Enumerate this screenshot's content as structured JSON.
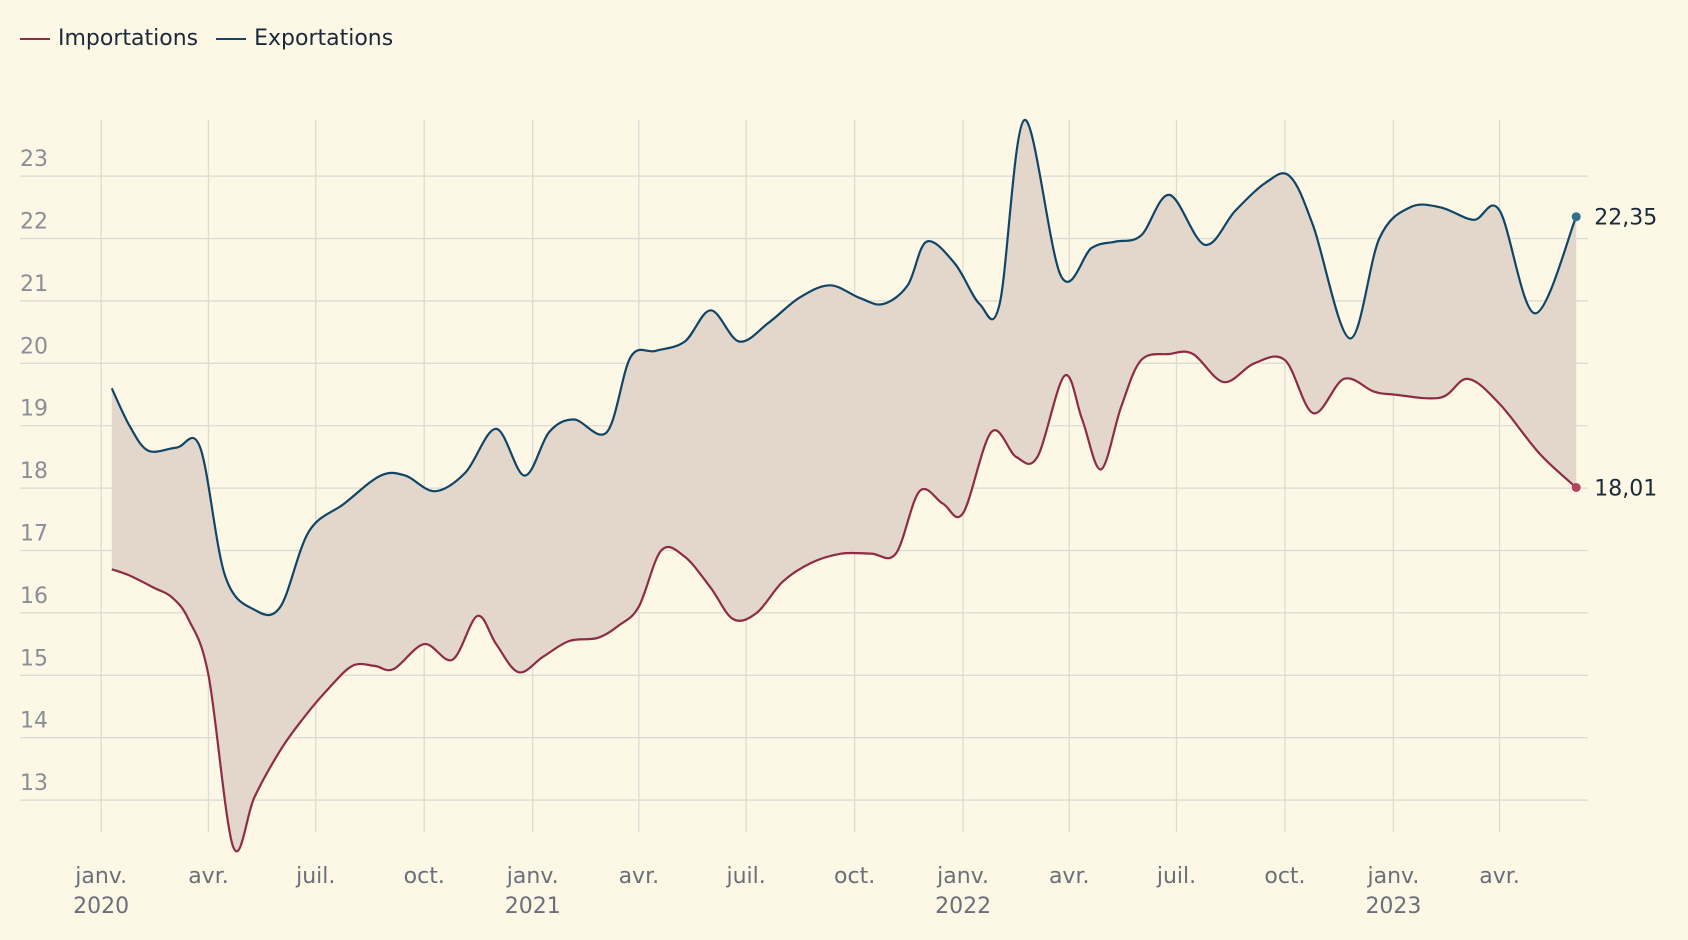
{
  "legend": {
    "items": [
      {
        "label": "Importations",
        "color": "#8e2b45"
      },
      {
        "label": "Exportations",
        "color": "#0f4566"
      }
    ]
  },
  "colors": {
    "background": "#fdf7e6",
    "grid": "#dcdcd4",
    "band_fill": "#e3d7cb",
    "imports": "#8e2b45",
    "exports": "#0f4566",
    "exports_end_marker": "#2e7188",
    "imports_end_marker": "#b3455f"
  },
  "chart_data": {
    "type": "line",
    "xlabel": "",
    "ylabel": "",
    "ylim": [
      12.2,
      23.9
    ],
    "yticks": [
      13,
      14,
      15,
      16,
      17,
      18,
      19,
      20,
      21,
      22,
      23
    ],
    "xlim": [
      "2019-12-31",
      "2023-06-15"
    ],
    "x_ticks": [
      {
        "date": "2020-01-01",
        "label": "janv.",
        "year": "2020"
      },
      {
        "date": "2020-04-01",
        "label": "avr.",
        "year": ""
      },
      {
        "date": "2020-07-01",
        "label": "juil.",
        "year": ""
      },
      {
        "date": "2020-10-01",
        "label": "oct.",
        "year": ""
      },
      {
        "date": "2021-01-01",
        "label": "janv.",
        "year": "2021"
      },
      {
        "date": "2021-04-01",
        "label": "avr.",
        "year": ""
      },
      {
        "date": "2021-07-01",
        "label": "juil.",
        "year": ""
      },
      {
        "date": "2021-10-01",
        "label": "oct.",
        "year": ""
      },
      {
        "date": "2022-01-01",
        "label": "janv.",
        "year": "2022"
      },
      {
        "date": "2022-04-01",
        "label": "avr.",
        "year": ""
      },
      {
        "date": "2022-07-01",
        "label": "juil.",
        "year": ""
      },
      {
        "date": "2022-10-01",
        "label": "oct.",
        "year": ""
      },
      {
        "date": "2023-01-01",
        "label": "janv.",
        "year": "2023"
      },
      {
        "date": "2023-04-01",
        "label": "avr.",
        "year": ""
      }
    ],
    "grid": true,
    "legend_position": "top-left",
    "shaded_band_between_series": true,
    "series": [
      {
        "name": "Importations",
        "end_label": "18,01",
        "points": [
          [
            "2020-01-10",
            16.7
          ],
          [
            "2020-01-25",
            16.6
          ],
          [
            "2020-02-15",
            16.4
          ],
          [
            "2020-03-01",
            16.25
          ],
          [
            "2020-03-15",
            15.9
          ],
          [
            "2020-04-01",
            15.0
          ],
          [
            "2020-04-22",
            12.25
          ],
          [
            "2020-05-10",
            13.05
          ],
          [
            "2020-06-01",
            13.8
          ],
          [
            "2020-06-20",
            14.3
          ],
          [
            "2020-07-10",
            14.75
          ],
          [
            "2020-08-01",
            15.15
          ],
          [
            "2020-08-20",
            15.15
          ],
          [
            "2020-09-05",
            15.1
          ],
          [
            "2020-10-01",
            15.5
          ],
          [
            "2020-10-25",
            15.25
          ],
          [
            "2020-11-15",
            15.95
          ],
          [
            "2020-12-01",
            15.5
          ],
          [
            "2020-12-20",
            15.05
          ],
          [
            "2021-01-10",
            15.3
          ],
          [
            "2021-02-01",
            15.55
          ],
          [
            "2021-02-25",
            15.6
          ],
          [
            "2021-03-15",
            15.8
          ],
          [
            "2021-04-01",
            16.1
          ],
          [
            "2021-04-20",
            17.0
          ],
          [
            "2021-05-10",
            16.9
          ],
          [
            "2021-06-01",
            16.4
          ],
          [
            "2021-06-20",
            15.9
          ],
          [
            "2021-07-10",
            16.0
          ],
          [
            "2021-08-01",
            16.5
          ],
          [
            "2021-08-25",
            16.8
          ],
          [
            "2021-09-20",
            16.95
          ],
          [
            "2021-10-15",
            16.95
          ],
          [
            "2021-11-05",
            16.95
          ],
          [
            "2021-11-25",
            17.95
          ],
          [
            "2021-12-15",
            17.75
          ],
          [
            "2022-01-01",
            17.6
          ],
          [
            "2022-01-25",
            18.9
          ],
          [
            "2022-02-15",
            18.5
          ],
          [
            "2022-03-05",
            18.5
          ],
          [
            "2022-03-28",
            19.8
          ],
          [
            "2022-04-12",
            19.1
          ],
          [
            "2022-04-28",
            18.3
          ],
          [
            "2022-05-15",
            19.3
          ],
          [
            "2022-06-01",
            20.05
          ],
          [
            "2022-06-25",
            20.15
          ],
          [
            "2022-07-15",
            20.15
          ],
          [
            "2022-08-10",
            19.7
          ],
          [
            "2022-09-05",
            20.0
          ],
          [
            "2022-10-01",
            20.05
          ],
          [
            "2022-10-25",
            19.2
          ],
          [
            "2022-11-20",
            19.75
          ],
          [
            "2022-12-15",
            19.55
          ],
          [
            "2023-01-01",
            19.5
          ],
          [
            "2023-02-10",
            19.45
          ],
          [
            "2023-03-05",
            19.75
          ],
          [
            "2023-04-01",
            19.35
          ],
          [
            "2023-05-05",
            18.55
          ],
          [
            "2023-06-05",
            18.01
          ]
        ]
      },
      {
        "name": "Exportations",
        "end_label": "22,35",
        "points": [
          [
            "2020-01-10",
            19.6
          ],
          [
            "2020-01-25",
            19.0
          ],
          [
            "2020-02-10",
            18.6
          ],
          [
            "2020-03-05",
            18.65
          ],
          [
            "2020-03-25",
            18.65
          ],
          [
            "2020-04-15",
            16.6
          ],
          [
            "2020-05-10",
            16.05
          ],
          [
            "2020-06-01",
            16.1
          ],
          [
            "2020-06-25",
            17.3
          ],
          [
            "2020-07-25",
            17.75
          ],
          [
            "2020-08-25",
            18.2
          ],
          [
            "2020-09-15",
            18.2
          ],
          [
            "2020-10-10",
            17.95
          ],
          [
            "2020-11-05",
            18.25
          ],
          [
            "2020-12-01",
            18.95
          ],
          [
            "2020-12-25",
            18.2
          ],
          [
            "2021-01-15",
            18.9
          ],
          [
            "2021-02-05",
            19.1
          ],
          [
            "2021-03-05",
            18.9
          ],
          [
            "2021-03-25",
            20.1
          ],
          [
            "2021-04-15",
            20.2
          ],
          [
            "2021-05-10",
            20.35
          ],
          [
            "2021-06-01",
            20.85
          ],
          [
            "2021-06-25",
            20.35
          ],
          [
            "2021-07-20",
            20.65
          ],
          [
            "2021-08-15",
            21.05
          ],
          [
            "2021-09-10",
            21.25
          ],
          [
            "2021-10-05",
            21.05
          ],
          [
            "2021-10-25",
            20.95
          ],
          [
            "2021-11-15",
            21.25
          ],
          [
            "2021-12-01",
            21.95
          ],
          [
            "2021-12-25",
            21.6
          ],
          [
            "2022-01-15",
            20.95
          ],
          [
            "2022-02-01",
            20.95
          ],
          [
            "2022-02-22",
            23.9
          ],
          [
            "2022-03-25",
            21.4
          ],
          [
            "2022-04-20",
            21.85
          ],
          [
            "2022-05-10",
            21.95
          ],
          [
            "2022-06-01",
            22.05
          ],
          [
            "2022-06-25",
            22.7
          ],
          [
            "2022-07-25",
            21.9
          ],
          [
            "2022-08-20",
            22.45
          ],
          [
            "2022-09-15",
            22.9
          ],
          [
            "2022-10-05",
            23.0
          ],
          [
            "2022-10-25",
            22.2
          ],
          [
            "2022-11-25",
            20.4
          ],
          [
            "2022-12-20",
            22.0
          ],
          [
            "2023-01-15",
            22.5
          ],
          [
            "2023-02-10",
            22.5
          ],
          [
            "2023-03-10",
            22.3
          ],
          [
            "2023-04-01",
            22.45
          ],
          [
            "2023-05-01",
            20.8
          ],
          [
            "2023-06-05",
            22.35
          ]
        ]
      }
    ]
  }
}
